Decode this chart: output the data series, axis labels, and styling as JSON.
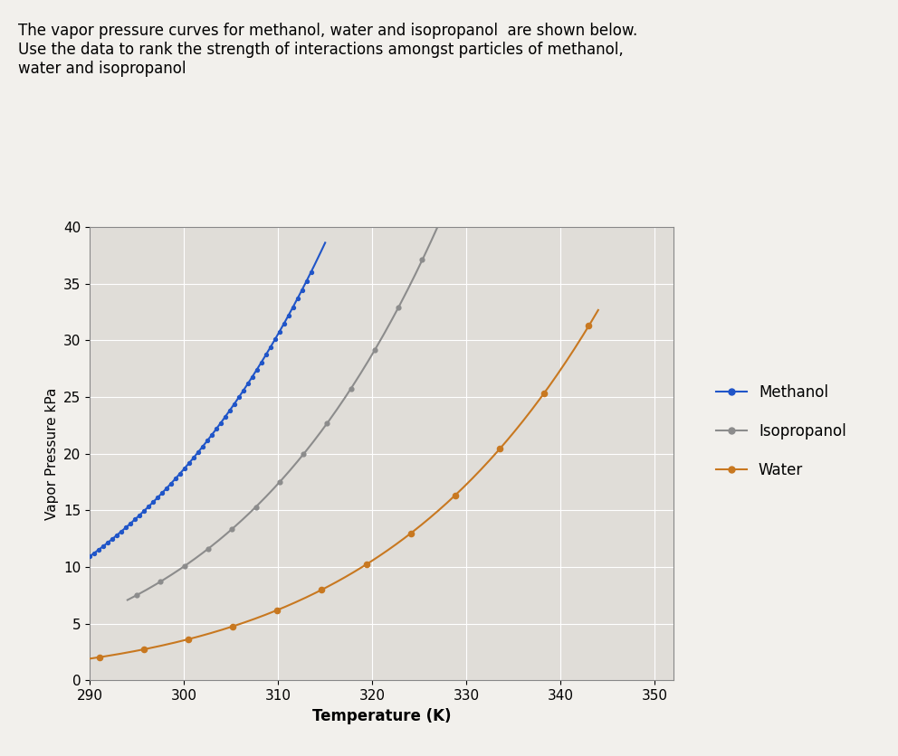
{
  "title_text": "The vapor pressure curves for methanol, water and isopropanol  are shown below.\nUse the data to rank the strength of interactions amongst particles of methanol,\nwater and isopropanol",
  "xlabel": "Temperature (K)",
  "ylabel": "Vapor Pressure kPa",
  "xlim": [
    290,
    352
  ],
  "ylim": [
    0,
    40
  ],
  "xticks": [
    290,
    300,
    310,
    320,
    330,
    340,
    350
  ],
  "yticks": [
    0,
    5,
    10,
    15,
    20,
    25,
    30,
    35,
    40
  ],
  "methanol_color": "#2055C8",
  "isopropanol_color": "#8C8C8C",
  "water_color": "#C87820",
  "bg_color": "#F2F0EC",
  "plot_bg_color": "#E0DDD8",
  "legend_labels": [
    "Methanol",
    "Isopropanol",
    "Water"
  ]
}
